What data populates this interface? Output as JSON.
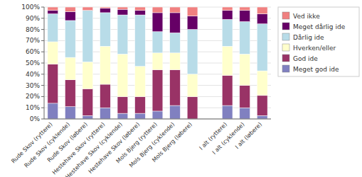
{
  "chart_data": {
    "type": "bar",
    "stacked": true,
    "grid": true,
    "legend": "right",
    "categories": [
      "Rude Skov (ryttere)",
      "Rude Skov (cyklende)",
      "Rude Skov (løbere)",
      "Hestehave Skov (ryttere)",
      "Hestehave Skov (cyklende)",
      "Hestehave Skov (løbere)",
      "Mols Bjerg (ryttere)",
      "Mols Bjerg (cyklende)",
      "Mols Bjerg (løbere)",
      null,
      "I alt (ryttere)",
      "I alt (cyklende)",
      "I alt (løbere)"
    ],
    "series": [
      {
        "name": "Meget god ide",
        "color": "#8080c0",
        "values": [
          14,
          11,
          3,
          10,
          5,
          5,
          7,
          12,
          0,
          0,
          12,
          10,
          3
        ]
      },
      {
        "name": "God ide",
        "color": "#993366",
        "values": [
          35,
          24,
          24,
          21,
          15,
          15,
          37,
          32,
          20,
          0,
          27,
          20,
          18
        ]
      },
      {
        "name": "Hverken/eller",
        "color": "#ffffcc",
        "values": [
          20,
          20,
          24,
          34,
          38,
          27,
          15,
          15,
          20,
          0,
          26,
          28,
          22
        ]
      },
      {
        "name": "Dårlig ide",
        "color": "#b8dce8",
        "values": [
          25,
          33,
          46,
          30,
          35,
          46,
          19,
          18,
          40,
          0,
          24,
          29,
          42
        ]
      },
      {
        "name": "Meget dårlig ide",
        "color": "#660066",
        "values": [
          3,
          8,
          0,
          4,
          5,
          4,
          17,
          18,
          12,
          0,
          8,
          10,
          9
        ]
      },
      {
        "name": "Ved ikke",
        "color": "#f08080",
        "values": [
          3,
          4,
          3,
          1,
          2,
          3,
          5,
          5,
          8,
          0,
          3,
          3,
          6
        ]
      }
    ],
    "ylim": [
      0,
      100
    ],
    "yticks": [
      {
        "value": 0,
        "label": "0%"
      },
      {
        "value": 10,
        "label": "10%"
      },
      {
        "value": 20,
        "label": "20%"
      },
      {
        "value": 30,
        "label": "30%"
      },
      {
        "value": 40,
        "label": "40%"
      },
      {
        "value": 50,
        "label": "50%"
      },
      {
        "value": 60,
        "label": "60%"
      },
      {
        "value": 70,
        "label": "70%"
      },
      {
        "value": 80,
        "label": "80%"
      },
      {
        "value": 90,
        "label": "90%"
      },
      {
        "value": 100,
        "label": "100%"
      }
    ]
  }
}
